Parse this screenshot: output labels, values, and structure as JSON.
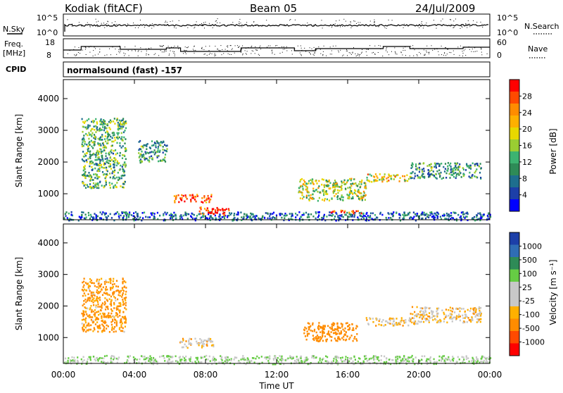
{
  "header": {
    "station": "Kodiak (fitACF)",
    "beam": "Beam 05",
    "date": "24/Jul/2009"
  },
  "noise_panel": {
    "left_label": "N.Sky",
    "right_label": "N.Search",
    "left_ticks": [
      "10^5",
      "10^0"
    ],
    "right_ticks": [
      "10^5",
      "10^0"
    ]
  },
  "freq_panel": {
    "left_label_line1": "Freq.",
    "left_label_line2": "[MHz]",
    "right_label": "Nave",
    "left_ticks": [
      "18",
      "8"
    ],
    "right_ticks": [
      "60",
      "0"
    ]
  },
  "cpid": {
    "label": "CPID",
    "program": "normalsound (fast) -157"
  },
  "power_panel": {
    "ylabel": "Slant Range [km]",
    "yticks": [
      "4000",
      "3000",
      "2000",
      "1000"
    ],
    "colorbar_label": "Power [dB]",
    "colorbar_ticks": [
      "28",
      "24",
      "20",
      "16",
      "12",
      "8",
      "4"
    ],
    "colorbar_colors": [
      "#ff0000",
      "#ff4a00",
      "#ff8c00",
      "#ffb000",
      "#e8d800",
      "#9acd32",
      "#3cb371",
      "#2e8b57",
      "#1e6e8e",
      "#1c3fa8",
      "#0000ff"
    ]
  },
  "velocity_panel": {
    "ylabel": "Slant Range [km]",
    "yticks": [
      "4000",
      "3000",
      "2000",
      "1000"
    ],
    "colorbar_label": "Velocity [m s⁻¹]",
    "colorbar_ticks": [
      "1000",
      "500",
      "100",
      "25",
      "-25",
      "-100",
      "-500",
      "-1000"
    ],
    "colorbar_colors": [
      "#1c3fa8",
      "#2f6db5",
      "#2e8b57",
      "#66cc44",
      "#c8c8c8",
      "#c8c8c8",
      "#ffb000",
      "#ff8c00",
      "#ff4a00",
      "#ff0000"
    ]
  },
  "xaxis": {
    "label": "Time UT",
    "ticks": [
      "00:00",
      "04:00",
      "08:00",
      "12:00",
      "16:00",
      "20:00",
      "00:00"
    ]
  },
  "chart_data": [
    {
      "type": "heatmap",
      "title": "Power [dB]",
      "xlabel": "Time UT",
      "ylabel": "Slant Range [km]",
      "xlim": [
        0,
        24
      ],
      "ylim": [
        180,
        4600
      ],
      "clim": [
        0,
        30
      ],
      "regions": [
        {
          "t": [
            0.0,
            24.0
          ],
          "r": [
            180,
            450
          ],
          "value": 6
        },
        {
          "t": [
            6.2,
            8.3
          ],
          "r": [
            750,
            1000
          ],
          "value": 26
        },
        {
          "t": [
            7.6,
            9.3
          ],
          "r": [
            350,
            600
          ],
          "value": 28
        },
        {
          "t": [
            13.2,
            17.0
          ],
          "r": [
            800,
            1500
          ],
          "value": 16
        },
        {
          "t": [
            15.0,
            16.8
          ],
          "r": [
            400,
            500
          ],
          "value": 27
        },
        {
          "t": [
            17.0,
            19.5
          ],
          "r": [
            1400,
            1650
          ],
          "value": 18
        },
        {
          "t": [
            1.0,
            3.5
          ],
          "r": [
            1200,
            3400
          ],
          "value": 12
        },
        {
          "t": [
            4.2,
            5.8
          ],
          "r": [
            2000,
            2700
          ],
          "value": 10
        },
        {
          "t": [
            19.5,
            23.5
          ],
          "r": [
            1500,
            2000
          ],
          "value": 10
        }
      ]
    },
    {
      "type": "heatmap",
      "title": "Velocity [m s⁻¹]",
      "xlabel": "Time UT",
      "ylabel": "Slant Range [km]",
      "xlim": [
        0,
        24
      ],
      "ylim": [
        180,
        4600
      ],
      "clim": [
        -1000,
        1000
      ],
      "regions": [
        {
          "t": [
            0.0,
            24.0
          ],
          "r": [
            180,
            450
          ],
          "value": 60
        },
        {
          "t": [
            6.5,
            8.5
          ],
          "r": [
            700,
            1000
          ],
          "value": -20
        },
        {
          "t": [
            13.5,
            16.5
          ],
          "r": [
            900,
            1500
          ],
          "value": -150
        },
        {
          "t": [
            17.0,
            20.0
          ],
          "r": [
            1400,
            1650
          ],
          "value": -20
        },
        {
          "t": [
            1.0,
            3.5
          ],
          "r": [
            1200,
            2900
          ],
          "value": -80
        },
        {
          "t": [
            19.5,
            23.5
          ],
          "r": [
            1500,
            2000
          ],
          "value": -20
        }
      ]
    }
  ]
}
